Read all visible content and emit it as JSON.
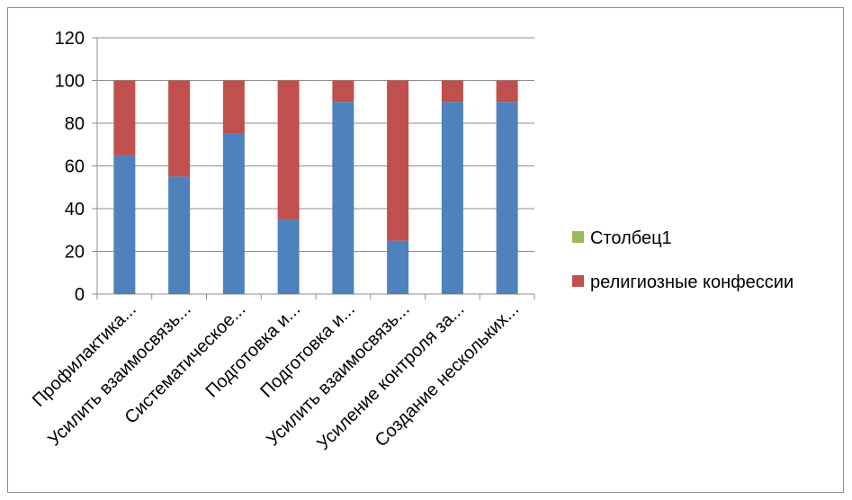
{
  "chart_data": {
    "type": "bar",
    "stacked": true,
    "title": "",
    "xlabel": "",
    "ylabel": "",
    "ylim": [
      0,
      120
    ],
    "yticks": [
      0,
      20,
      40,
      60,
      80,
      100,
      120
    ],
    "grid": true,
    "legend_position": "right",
    "categories": [
      "Профилактика...",
      "Усилить взаимосвязь...",
      "Систематическое...",
      "Подготовка и...",
      "Подготовка и...",
      "Усилить взаимосвязь...",
      "Усиление контроля за...",
      "Создание нескольких..."
    ],
    "series": [
      {
        "values": [
          65,
          55,
          75,
          35,
          90,
          25,
          90,
          90
        ],
        "color": "#4f81bd"
      },
      {
        "name": "религиозные конфессии",
        "values": [
          35,
          45,
          25,
          65,
          10,
          75,
          10,
          10
        ],
        "color": "#c0504d"
      },
      {
        "name": "Столбец1",
        "values": [
          0,
          0,
          0,
          0,
          0,
          0,
          0,
          0
        ],
        "color": "#9bbb59"
      }
    ],
    "legend": [
      {
        "name": "Столбец1",
        "color": "#9bbb59"
      },
      {
        "name": "религиозные конфессии",
        "color": "#c0504d"
      }
    ]
  }
}
